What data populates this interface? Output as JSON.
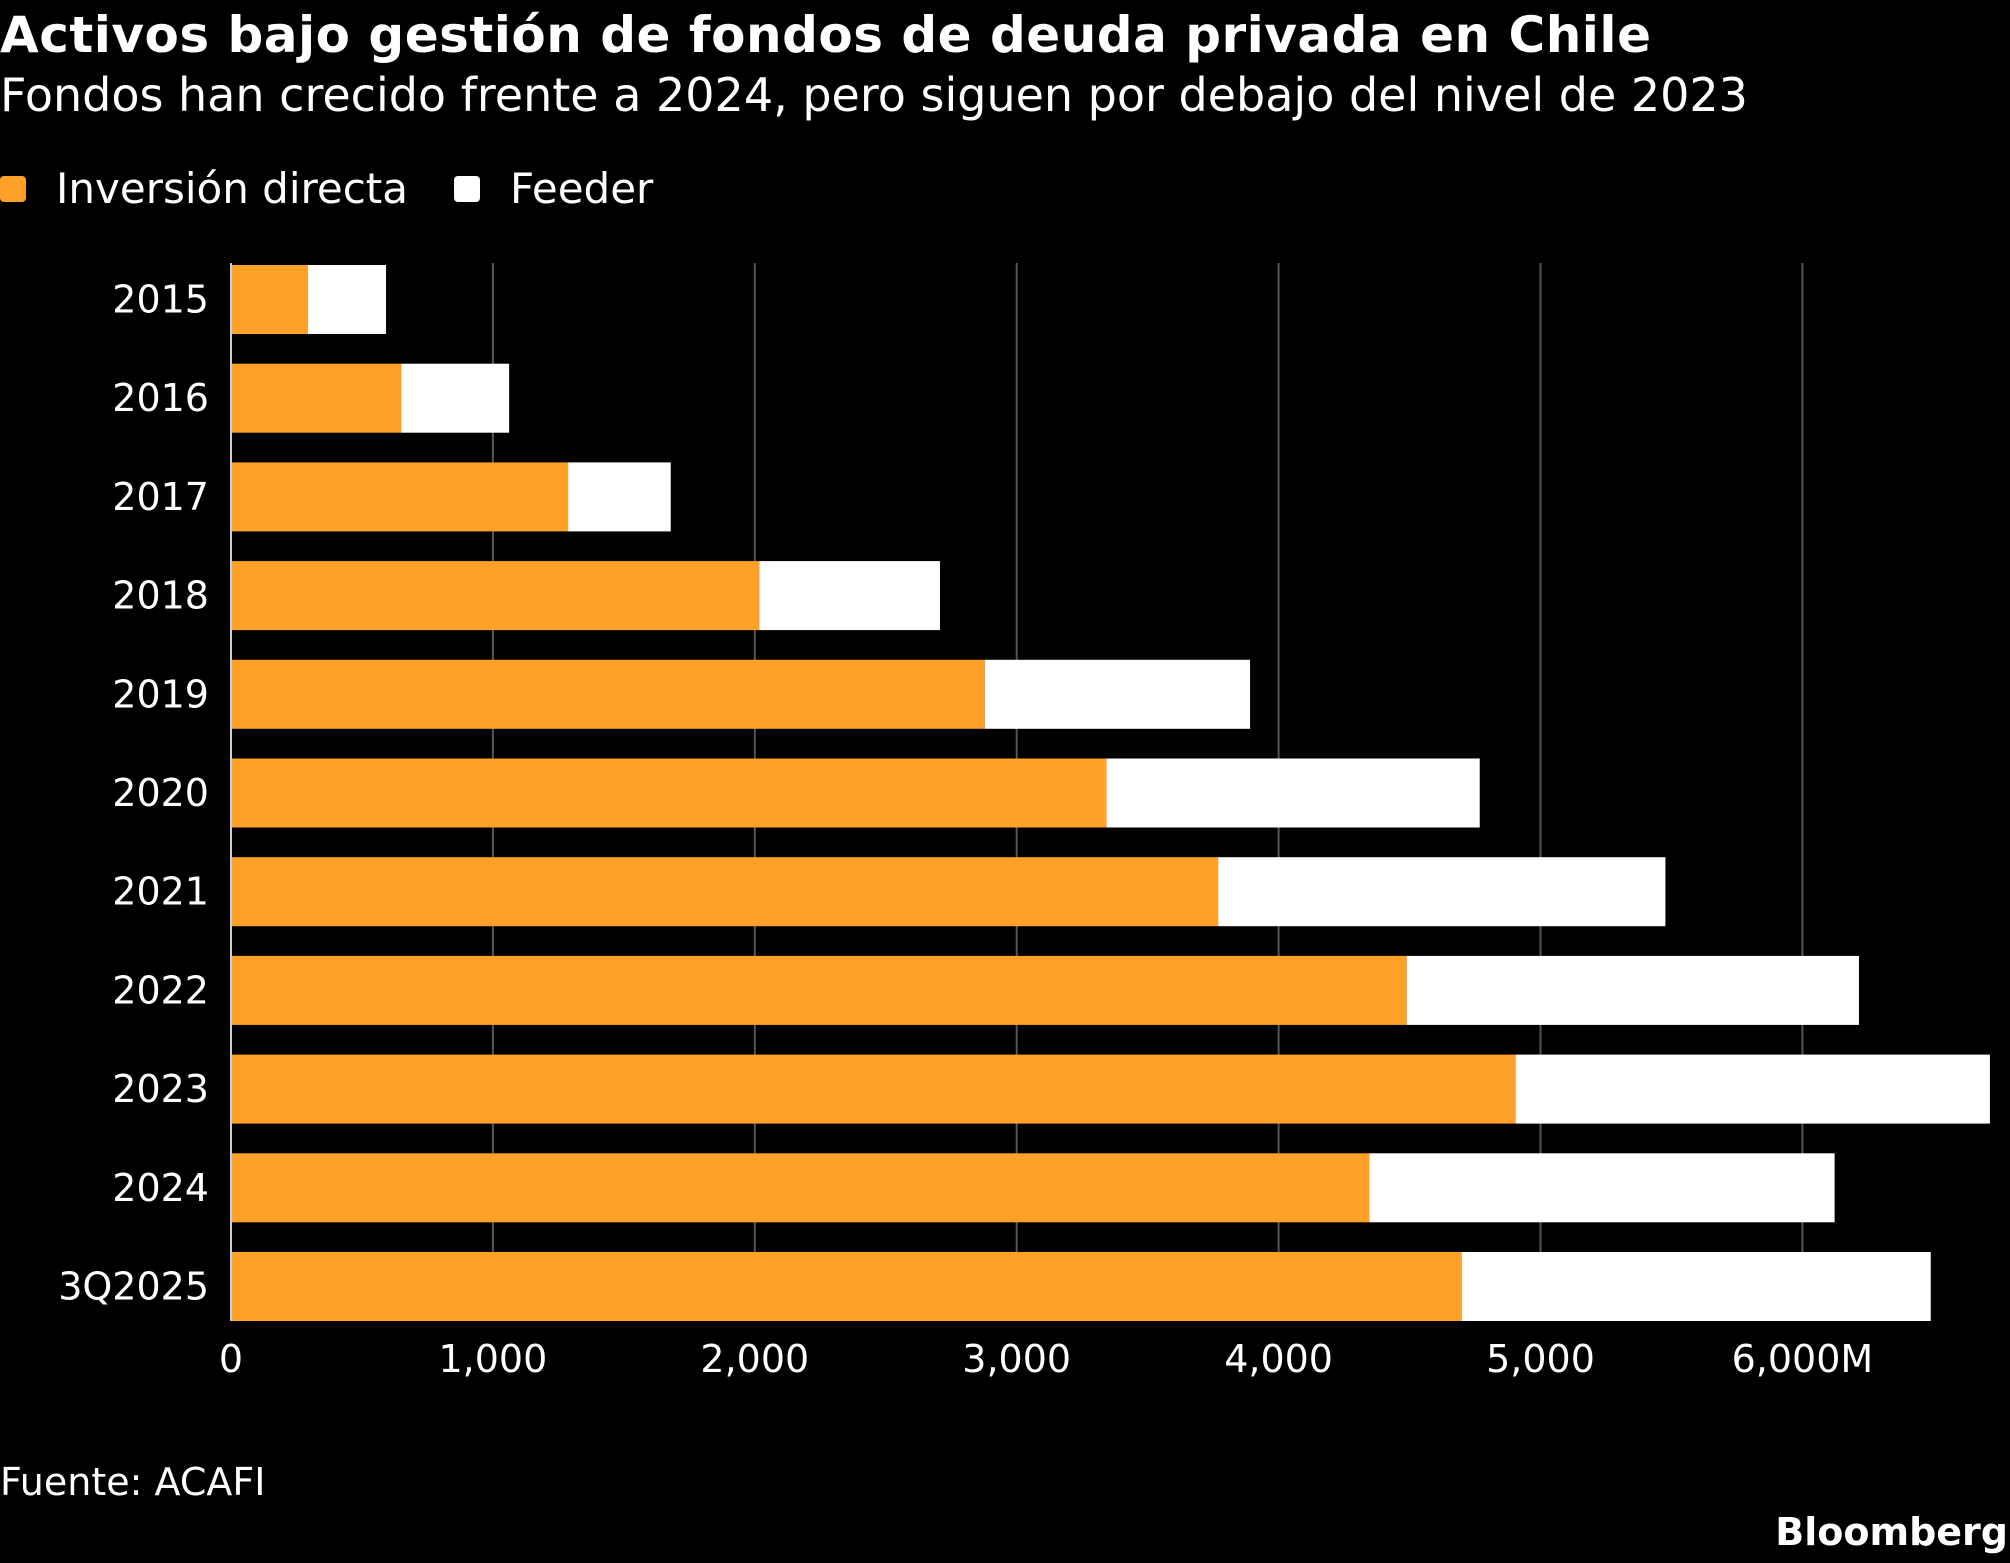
{
  "title": "Activos bajo gestión de fondos de deuda privada en Chile",
  "subtitle": "Fondos han crecido frente a 2024, pero siguen por debajo del nivel de 2023",
  "source": "Fuente: ACAFI",
  "logo": "Bloomberg",
  "colors": {
    "inversion": "#FFA028",
    "feeder": "#FFFFFF",
    "background": "#000000",
    "grid": "#555555"
  },
  "chart_data": {
    "type": "bar",
    "orientation": "horizontal",
    "stacked": true,
    "categories": [
      "2015",
      "2016",
      "2017",
      "2018",
      "2019",
      "2020",
      "2021",
      "2022",
      "2023",
      "2024",
      "3Q2025"
    ],
    "series": [
      {
        "name": "Inversión directa",
        "values": [
          294,
          651,
          1287,
          2017,
          2878,
          3343,
          3769,
          4489,
          4905,
          4347,
          4699
        ]
      },
      {
        "name": "Feeder",
        "values": [
          298,
          411,
          392,
          690,
          1013,
          1425,
          1708,
          1727,
          1811,
          1776,
          1791
        ]
      }
    ],
    "xlim": [
      0,
      6716
    ],
    "xticks": [
      0,
      1000,
      2000,
      3000,
      4000,
      5000,
      6000
    ],
    "xtick_labels": [
      "0",
      "1,000",
      "2,000",
      "3,000",
      "4,000",
      "5,000",
      "6,000M"
    ],
    "grid": true,
    "legend": "top-left"
  }
}
